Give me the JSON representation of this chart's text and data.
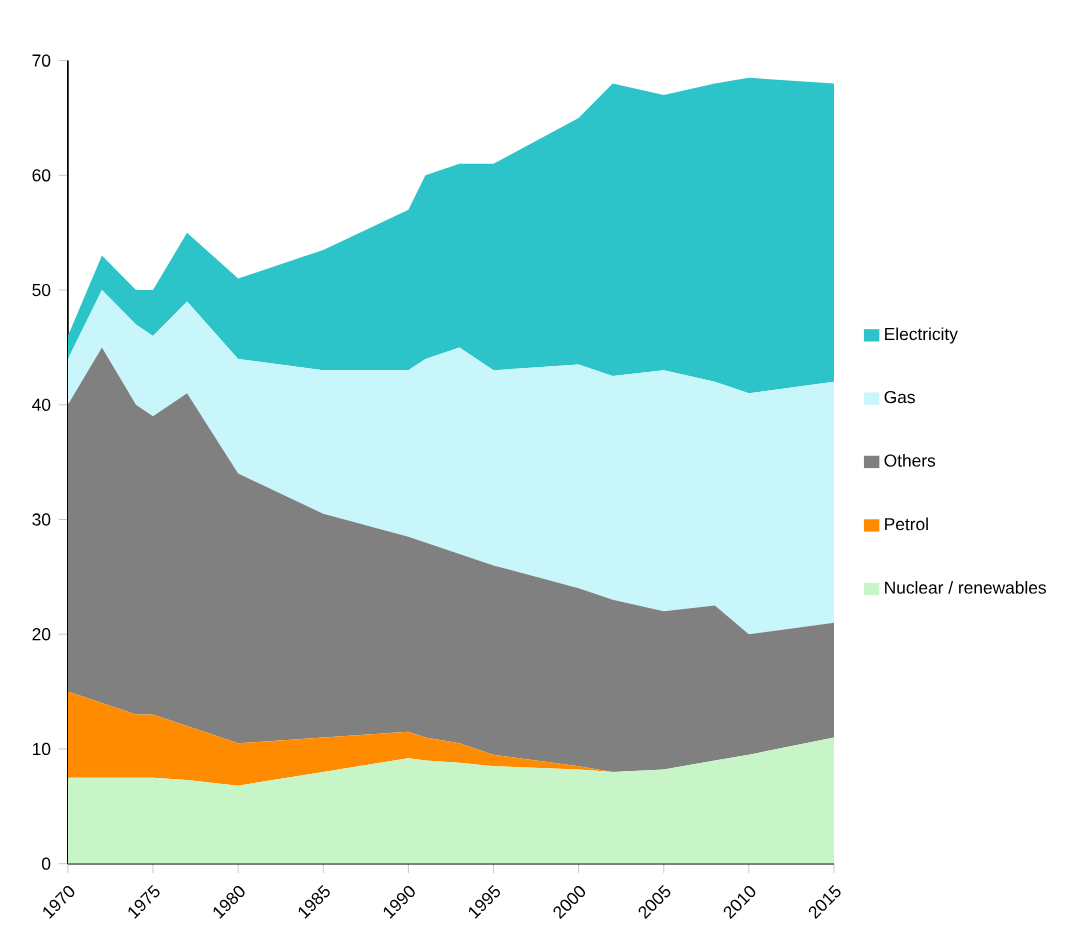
{
  "chart_data": {
    "type": "area",
    "stacked": true,
    "legend": "right",
    "grid": false,
    "x": [
      1970,
      1972,
      1974,
      1975,
      1977,
      1980,
      1985,
      1990,
      1991,
      1993,
      1995,
      2000,
      2002,
      2005,
      2008,
      2010,
      2015
    ],
    "xlim": [
      1970,
      2015
    ],
    "xticks": [
      1970,
      1975,
      1980,
      1985,
      1990,
      1995,
      2000,
      2005,
      2010,
      2015
    ],
    "ylim": [
      0,
      70
    ],
    "yticks": [
      0,
      10,
      20,
      30,
      40,
      50,
      60,
      70
    ],
    "series": [
      {
        "name": "Nuclear / renewables",
        "color": "#c8f5c8",
        "values": [
          7.5,
          7.5,
          7.5,
          7.5,
          7.3,
          6.8,
          8,
          9.2,
          9,
          8.8,
          8.5,
          8.2,
          8,
          8.2,
          9,
          9.5,
          11
        ]
      },
      {
        "name": "Petrol",
        "color": "#ff8c00",
        "values": [
          7.5,
          6.5,
          5.5,
          5.5,
          4.7,
          3.7,
          3,
          2.3,
          2,
          1.7,
          1,
          0.3,
          0,
          0,
          0,
          0,
          0
        ]
      },
      {
        "name": "Others",
        "color": "#808080",
        "values": [
          25,
          31,
          27,
          26,
          29,
          23.5,
          19.5,
          17,
          17,
          16.5,
          16.5,
          15.5,
          15,
          13.8,
          13.5,
          10.5,
          10
        ]
      },
      {
        "name": "Gas",
        "color": "#c8f6fa",
        "values": [
          4,
          5,
          7,
          7,
          8,
          10,
          12.5,
          14.5,
          16,
          18,
          17,
          19.5,
          19.5,
          21,
          19.5,
          21,
          21
        ]
      },
      {
        "name": "Electricity",
        "color": "#2cc4c8",
        "values": [
          2,
          3,
          3,
          4,
          6,
          7,
          10.5,
          14,
          16,
          16,
          18,
          21.5,
          25.5,
          24,
          26,
          27.5,
          26
        ]
      }
    ]
  }
}
